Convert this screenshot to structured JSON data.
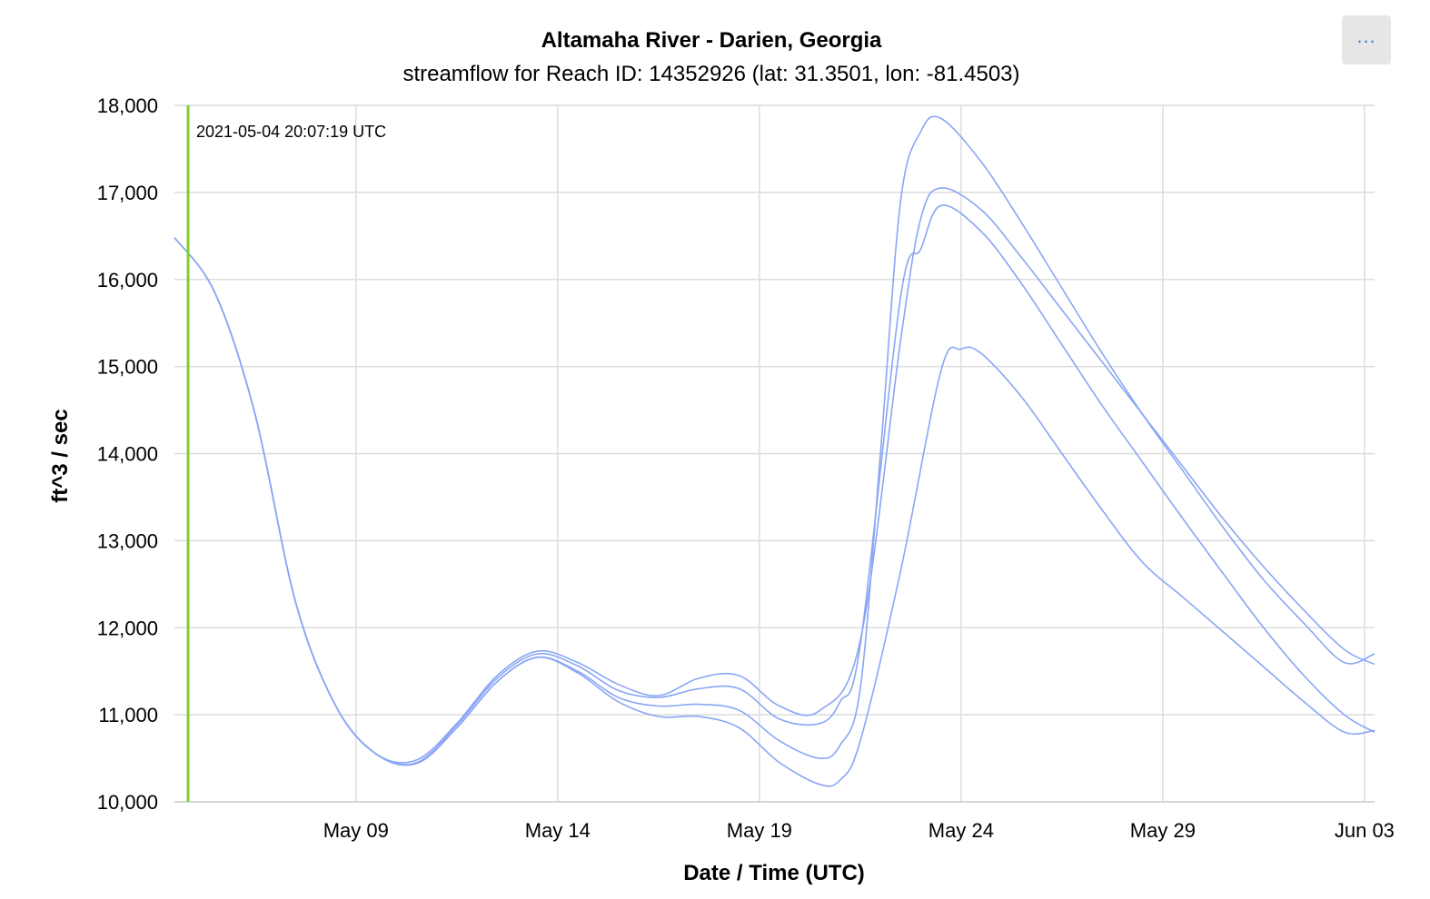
{
  "title": "Altamaha River - Darien, Georgia",
  "subtitle": "streamflow for Reach ID: 14352926 (lat: 31.3501, lon: -81.4503)",
  "menu": {
    "icon": "more-horizontal-icon",
    "label": "..."
  },
  "colors": {
    "series": "#8aa6f4",
    "marker": "#7cd12a",
    "grid": "#dcdcdc"
  },
  "chart_data": {
    "type": "line",
    "xlabel": "Date / Time (UTC)",
    "ylabel": "ft^3 / sec",
    "xlim": [
      "2021-05-04T12:00",
      "2021-06-03T06:00"
    ],
    "ylim": [
      10000,
      18000
    ],
    "yticks": [
      10000,
      11000,
      12000,
      13000,
      14000,
      15000,
      16000,
      17000,
      18000
    ],
    "ytick_labels": [
      "10,000",
      "11,000",
      "12,000",
      "13,000",
      "14,000",
      "15,000",
      "16,000",
      "17,000",
      "18,000"
    ],
    "xticks": [
      "2021-05-09",
      "2021-05-14",
      "2021-05-19",
      "2021-05-24",
      "2021-05-29",
      "2021-06-03"
    ],
    "xtick_labels": [
      "May 09",
      "May 14",
      "May 19",
      "May 24",
      "May 29",
      "Jun 03"
    ],
    "grid": true,
    "legend": "none",
    "marker": {
      "x": "2021-05-04T20:07",
      "label": "2021-05-04 20:07:19 UTC"
    },
    "series": [
      {
        "points": [
          [
            "2021-05-04T12:00",
            16480
          ],
          [
            "2021-05-05T12:00",
            15850
          ],
          [
            "2021-05-06T12:00",
            14450
          ],
          [
            "2021-05-07T12:00",
            12300
          ],
          [
            "2021-05-08T12:00",
            11100
          ],
          [
            "2021-05-09T12:00",
            10550
          ],
          [
            "2021-05-10T12:00",
            10480
          ],
          [
            "2021-05-11T12:00",
            10900
          ],
          [
            "2021-05-12T12:00",
            11450
          ],
          [
            "2021-05-13T12:00",
            11730
          ],
          [
            "2021-05-14T12:00",
            11600
          ],
          [
            "2021-05-15T12:00",
            11350
          ],
          [
            "2021-05-16T12:00",
            11220
          ],
          [
            "2021-05-17T12:00",
            11420
          ],
          [
            "2021-05-18T12:00",
            11450
          ],
          [
            "2021-05-19T12:00",
            11100
          ],
          [
            "2021-05-20T12:00",
            11050
          ],
          [
            "2021-05-21T12:00",
            11850
          ],
          [
            "2021-05-22T12:00",
            15300
          ],
          [
            "2021-05-23T00:00",
            16700
          ],
          [
            "2021-05-23T12:00",
            17050
          ],
          [
            "2021-05-24T12:00",
            16800
          ],
          [
            "2021-05-25T12:00",
            16250
          ],
          [
            "2021-05-26T12:00",
            15650
          ],
          [
            "2021-05-27T12:00",
            15050
          ],
          [
            "2021-05-28T12:00",
            14450
          ],
          [
            "2021-05-29T12:00",
            13850
          ],
          [
            "2021-05-30T12:00",
            13250
          ],
          [
            "2021-05-31T12:00",
            12700
          ],
          [
            "2021-06-01T12:00",
            12200
          ],
          [
            "2021-06-02T12:00",
            11750
          ],
          [
            "2021-06-03T06:00",
            11580
          ]
        ]
      },
      {
        "points": [
          [
            "2021-05-04T12:00",
            16480
          ],
          [
            "2021-05-05T12:00",
            15850
          ],
          [
            "2021-05-06T12:00",
            14450
          ],
          [
            "2021-05-07T12:00",
            12300
          ],
          [
            "2021-05-08T12:00",
            11100
          ],
          [
            "2021-05-09T12:00",
            10550
          ],
          [
            "2021-05-10T12:00",
            10450
          ],
          [
            "2021-05-11T12:00",
            10880
          ],
          [
            "2021-05-12T12:00",
            11420
          ],
          [
            "2021-05-13T12:00",
            11700
          ],
          [
            "2021-05-14T12:00",
            11560
          ],
          [
            "2021-05-15T12:00",
            11280
          ],
          [
            "2021-05-16T12:00",
            11200
          ],
          [
            "2021-05-17T12:00",
            11300
          ],
          [
            "2021-05-18T12:00",
            11300
          ],
          [
            "2021-05-19T12:00",
            10950
          ],
          [
            "2021-05-20T12:00",
            10900
          ],
          [
            "2021-05-21T00:00",
            11150
          ],
          [
            "2021-05-21T12:00",
            11800
          ],
          [
            "2021-05-22T12:00",
            15800
          ],
          [
            "2021-05-23T00:00",
            16350
          ],
          [
            "2021-05-23T12:00",
            16850
          ],
          [
            "2021-05-24T12:00",
            16550
          ],
          [
            "2021-05-25T12:00",
            15950
          ],
          [
            "2021-05-26T12:00",
            15250
          ],
          [
            "2021-05-27T12:00",
            14550
          ],
          [
            "2021-05-28T12:00",
            13900
          ],
          [
            "2021-05-29T12:00",
            13250
          ],
          [
            "2021-05-30T12:00",
            12620
          ],
          [
            "2021-05-31T12:00",
            12000
          ],
          [
            "2021-06-01T12:00",
            11450
          ],
          [
            "2021-06-02T12:00",
            11000
          ],
          [
            "2021-06-03T06:00",
            10800
          ]
        ]
      },
      {
        "points": [
          [
            "2021-05-04T12:00",
            16480
          ],
          [
            "2021-05-05T12:00",
            15850
          ],
          [
            "2021-05-06T12:00",
            14450
          ],
          [
            "2021-05-07T12:00",
            12300
          ],
          [
            "2021-05-08T12:00",
            11100
          ],
          [
            "2021-05-09T12:00",
            10550
          ],
          [
            "2021-05-10T12:00",
            10440
          ],
          [
            "2021-05-11T12:00",
            10850
          ],
          [
            "2021-05-12T12:00",
            11380
          ],
          [
            "2021-05-13T12:00",
            11660
          ],
          [
            "2021-05-14T12:00",
            11500
          ],
          [
            "2021-05-15T12:00",
            11200
          ],
          [
            "2021-05-16T12:00",
            11100
          ],
          [
            "2021-05-17T12:00",
            11120
          ],
          [
            "2021-05-18T12:00",
            11050
          ],
          [
            "2021-05-19T12:00",
            10700
          ],
          [
            "2021-05-20T12:00",
            10500
          ],
          [
            "2021-05-21T00:00",
            10650
          ],
          [
            "2021-05-21T12:00",
            11300
          ],
          [
            "2021-05-22T00:00",
            14000
          ],
          [
            "2021-05-22T12:00",
            16900
          ],
          [
            "2021-05-23T00:00",
            17700
          ],
          [
            "2021-05-23T12:00",
            17850
          ],
          [
            "2021-05-24T12:00",
            17350
          ],
          [
            "2021-05-25T12:00",
            16650
          ],
          [
            "2021-05-26T12:00",
            15900
          ],
          [
            "2021-05-27T12:00",
            15150
          ],
          [
            "2021-05-28T12:00",
            14450
          ],
          [
            "2021-05-29T12:00",
            13800
          ],
          [
            "2021-05-30T12:00",
            13150
          ],
          [
            "2021-05-31T12:00",
            12550
          ],
          [
            "2021-06-01T12:00",
            12050
          ],
          [
            "2021-06-02T12:00",
            11600
          ],
          [
            "2021-06-03T06:00",
            11700
          ]
        ]
      },
      {
        "points": [
          [
            "2021-05-04T12:00",
            16480
          ],
          [
            "2021-05-05T12:00",
            15850
          ],
          [
            "2021-05-06T12:00",
            14450
          ],
          [
            "2021-05-07T12:00",
            12300
          ],
          [
            "2021-05-08T12:00",
            11100
          ],
          [
            "2021-05-09T12:00",
            10550
          ],
          [
            "2021-05-10T12:00",
            10440
          ],
          [
            "2021-05-11T12:00",
            10850
          ],
          [
            "2021-05-12T12:00",
            11380
          ],
          [
            "2021-05-13T12:00",
            11660
          ],
          [
            "2021-05-14T12:00",
            11480
          ],
          [
            "2021-05-15T12:00",
            11150
          ],
          [
            "2021-05-16T12:00",
            10980
          ],
          [
            "2021-05-17T12:00",
            10980
          ],
          [
            "2021-05-18T12:00",
            10850
          ],
          [
            "2021-05-19T12:00",
            10450
          ],
          [
            "2021-05-20T12:00",
            10200
          ],
          [
            "2021-05-21T00:00",
            10250
          ],
          [
            "2021-05-21T12:00",
            10700
          ],
          [
            "2021-05-22T12:00",
            12650
          ],
          [
            "2021-05-23T12:00",
            14950
          ],
          [
            "2021-05-24T00:00",
            15200
          ],
          [
            "2021-05-24T12:00",
            15150
          ],
          [
            "2021-05-25T12:00",
            14650
          ],
          [
            "2021-05-26T12:00",
            14000
          ],
          [
            "2021-05-27T12:00",
            13350
          ],
          [
            "2021-05-28T12:00",
            12750
          ],
          [
            "2021-05-29T12:00",
            12350
          ],
          [
            "2021-05-30T12:00",
            11950
          ],
          [
            "2021-05-31T12:00",
            11550
          ],
          [
            "2021-06-01T12:00",
            11150
          ],
          [
            "2021-06-02T12:00",
            10800
          ],
          [
            "2021-06-03T06:00",
            10820
          ]
        ]
      }
    ]
  }
}
